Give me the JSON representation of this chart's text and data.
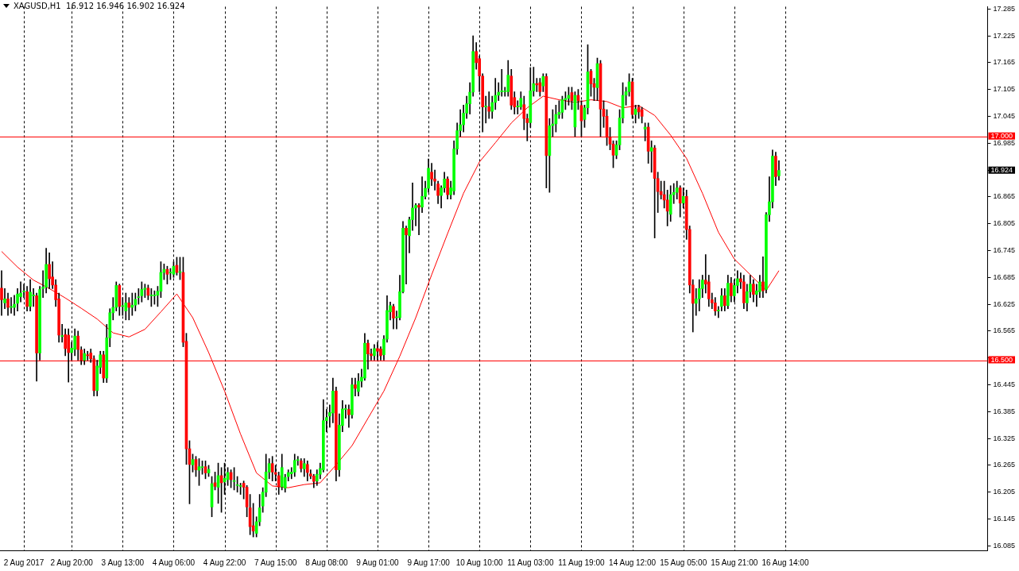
{
  "chart_data": {
    "type": "candlestick",
    "title": "XAGUSD,H1  16.912 16.946 16.902 16.924",
    "categories": [
      null,
      null,
      null,
      null,
      null,
      null,
      null,
      "2 Aug 2017",
      null,
      null,
      null,
      null,
      null,
      null,
      null,
      null,
      null,
      null,
      null,
      null,
      null,
      null,
      "2 Aug 20:00",
      null,
      null,
      null,
      null,
      null,
      null,
      null,
      null,
      null,
      null,
      null,
      null,
      null,
      null,
      null,
      "3 Aug 13:00",
      null,
      null,
      null,
      null,
      null,
      null,
      null,
      null,
      null,
      null,
      null,
      null,
      null,
      null,
      null,
      "4 Aug 06:00",
      null,
      null,
      null,
      null,
      null,
      null,
      null,
      null,
      null,
      null,
      null,
      null,
      null,
      null,
      null,
      "4 Aug 22:00",
      null,
      null,
      null,
      null,
      null,
      null,
      null,
      null,
      null,
      null,
      null,
      null,
      null,
      null,
      null,
      "7 Aug 15:00",
      null,
      null,
      null,
      null,
      null,
      null,
      null,
      null,
      null,
      null,
      null,
      null,
      null,
      null,
      null,
      "8 Aug 08:00",
      null,
      null,
      null,
      null,
      null,
      null,
      null,
      null,
      null,
      null,
      null,
      null,
      null,
      null,
      null,
      "9 Aug 01:00",
      null,
      null,
      null,
      null,
      null,
      null,
      null,
      null,
      null,
      null,
      null,
      null,
      null,
      null,
      null,
      "9 Aug 17:00",
      null,
      null,
      null,
      null,
      null,
      null,
      null,
      null,
      null,
      null,
      null,
      null,
      null,
      null,
      null,
      "10 Aug 10:00",
      null,
      null,
      null,
      null,
      null,
      null,
      null,
      null,
      null,
      null,
      null,
      null,
      null,
      null,
      null,
      "11 Aug 03:00",
      null,
      null,
      null,
      null,
      null,
      null,
      null,
      null,
      null,
      null,
      null,
      null,
      null,
      null,
      null,
      "11 Aug 19:00",
      null,
      null,
      null,
      null,
      null,
      null,
      null,
      null,
      null,
      null,
      null,
      null,
      null,
      null,
      null,
      "14 Aug 12:00",
      null,
      null,
      null,
      null,
      null,
      null,
      null,
      null,
      null,
      null,
      null,
      null,
      null,
      null,
      null,
      "15 Aug 05:00",
      null,
      null,
      null,
      null,
      null,
      null,
      null,
      null,
      null,
      null,
      null,
      null,
      null,
      null,
      null,
      "15 Aug 21:00",
      null,
      null,
      null,
      null,
      null,
      null,
      null,
      null,
      null,
      null,
      null,
      null,
      null,
      null,
      null,
      "16 Aug 14:00",
      null,
      null,
      null,
      null,
      null,
      null,
      null,
      null,
      null,
      null,
      null,
      null,
      null,
      null,
      null,
      null,
      null,
      null,
      null,
      null,
      null,
      null,
      null,
      null,
      null,
      null,
      null,
      null,
      null,
      null,
      null,
      null,
      null,
      null,
      null,
      null,
      null,
      null,
      null,
      null,
      null,
      null,
      null,
      null,
      null,
      null,
      null,
      null,
      null,
      null,
      null,
      null,
      null,
      null,
      null,
      null,
      null,
      null,
      null,
      null,
      null,
      null,
      null
    ],
    "ohlc": [
      [
        16.661,
        16.7,
        16.6,
        16.635
      ],
      [
        16.628,
        16.66,
        16.615,
        16.637
      ],
      [
        16.637,
        16.65,
        16.6,
        16.618
      ],
      [
        16.618,
        16.64,
        16.605,
        16.618
      ],
      [
        16.618,
        16.645,
        16.6,
        16.625
      ],
      [
        16.627,
        16.66,
        16.61,
        16.648
      ],
      [
        16.642,
        16.675,
        16.63,
        16.65
      ],
      [
        16.653,
        16.67,
        16.64,
        16.653
      ],
      [
        16.653,
        16.665,
        16.61,
        16.62
      ],
      [
        16.62,
        16.68,
        16.61,
        16.652
      ],
      [
        16.644,
        16.66,
        16.62,
        16.644
      ],
      [
        16.644,
        16.65,
        16.453,
        16.516
      ],
      [
        16.516,
        16.665,
        16.5,
        16.658
      ],
      [
        16.66,
        16.7,
        16.64,
        16.663
      ],
      [
        16.663,
        16.75,
        16.65,
        16.714
      ],
      [
        16.714,
        16.74,
        16.66,
        16.682
      ],
      [
        16.686,
        16.72,
        16.66,
        16.668
      ],
      [
        16.668,
        16.68,
        16.62,
        16.635
      ],
      [
        16.637,
        16.65,
        16.54,
        16.556
      ],
      [
        16.553,
        16.58,
        16.54,
        16.553
      ],
      [
        16.557,
        16.57,
        16.51,
        16.526
      ],
      [
        16.556,
        16.57,
        16.451,
        16.517
      ],
      [
        16.517,
        16.54,
        16.5,
        16.527
      ],
      [
        16.524,
        16.57,
        16.51,
        16.554
      ],
      [
        16.554,
        16.565,
        16.5,
        16.524
      ],
      [
        16.523,
        16.53,
        16.49,
        16.5
      ],
      [
        16.5,
        16.525,
        16.49,
        16.515
      ],
      [
        16.512,
        16.52,
        16.5,
        16.51
      ],
      [
        16.516,
        16.525,
        16.495,
        16.503
      ],
      [
        16.503,
        16.51,
        16.42,
        16.432
      ],
      [
        16.432,
        16.5,
        16.42,
        16.487
      ],
      [
        16.484,
        16.52,
        16.47,
        16.512
      ],
      [
        16.512,
        16.52,
        16.45,
        16.46
      ],
      [
        16.46,
        16.58,
        16.45,
        16.55
      ],
      [
        16.55,
        16.615,
        16.53,
        16.606
      ],
      [
        16.606,
        16.64,
        16.59,
        16.618
      ],
      [
        16.618,
        16.675,
        16.61,
        16.667
      ],
      [
        16.667,
        16.67,
        16.6,
        16.62
      ],
      [
        16.62,
        16.64,
        16.6,
        16.62
      ],
      [
        16.61,
        16.65,
        16.59,
        16.628
      ],
      [
        16.628,
        16.64,
        16.59,
        16.618
      ],
      [
        16.618,
        16.65,
        16.6,
        16.623
      ],
      [
        16.623,
        16.65,
        16.61,
        16.636
      ],
      [
        16.64,
        16.66,
        16.625,
        16.64
      ],
      [
        16.644,
        16.675,
        16.63,
        16.658
      ],
      [
        16.658,
        16.67,
        16.64,
        16.661
      ],
      [
        16.661,
        16.668,
        16.635,
        16.645
      ],
      [
        16.644,
        16.66,
        16.62,
        16.644
      ],
      [
        16.644,
        16.655,
        16.625,
        16.644
      ],
      [
        16.645,
        16.665,
        16.62,
        16.654
      ],
      [
        16.654,
        16.72,
        16.64,
        16.696
      ],
      [
        16.696,
        16.715,
        16.68,
        16.703
      ],
      [
        16.703,
        16.71,
        16.67,
        16.692
      ],
      [
        16.695,
        16.705,
        16.68,
        16.695
      ],
      [
        16.692,
        16.72,
        16.685,
        16.71
      ],
      [
        16.712,
        16.73,
        16.69,
        16.696
      ],
      [
        16.696,
        16.73,
        16.68,
        16.698
      ],
      [
        16.696,
        16.73,
        16.53,
        16.54
      ],
      [
        16.542,
        16.56,
        16.267,
        16.302
      ],
      [
        16.302,
        16.32,
        16.179,
        16.267
      ],
      [
        16.266,
        16.29,
        16.25,
        16.278
      ],
      [
        16.278,
        16.285,
        16.24,
        16.255
      ],
      [
        16.254,
        16.28,
        16.22,
        16.262
      ],
      [
        16.26,
        16.275,
        16.245,
        16.26
      ],
      [
        16.262,
        16.275,
        16.235,
        16.248
      ],
      [
        16.248,
        16.265,
        16.24,
        16.256
      ],
      [
        16.172,
        16.24,
        16.15,
        16.224
      ],
      [
        16.226,
        16.25,
        16.21,
        16.218
      ],
      [
        16.216,
        16.27,
        16.18,
        16.242
      ],
      [
        16.242,
        16.26,
        16.16,
        16.226
      ],
      [
        16.228,
        16.27,
        16.2,
        16.236
      ],
      [
        16.233,
        16.26,
        16.22,
        16.249
      ],
      [
        16.249,
        16.255,
        16.215,
        16.233
      ],
      [
        16.229,
        16.26,
        16.21,
        16.229
      ],
      [
        16.22,
        16.24,
        16.205,
        16.22
      ],
      [
        16.218,
        16.225,
        16.2,
        16.218
      ],
      [
        16.225,
        16.23,
        16.19,
        16.216
      ],
      [
        16.216,
        16.22,
        16.15,
        16.172
      ],
      [
        16.17,
        16.2,
        16.11,
        16.128
      ],
      [
        16.13,
        16.18,
        16.105,
        16.118
      ],
      [
        16.113,
        16.15,
        16.105,
        16.139
      ],
      [
        16.139,
        16.2,
        16.13,
        16.17
      ],
      [
        16.174,
        16.215,
        16.16,
        16.205
      ],
      [
        16.205,
        16.29,
        16.195,
        16.25
      ],
      [
        16.25,
        16.28,
        16.235,
        16.269
      ],
      [
        16.269,
        16.285,
        16.23,
        16.25
      ],
      [
        16.249,
        16.265,
        16.23,
        16.245
      ],
      [
        16.242,
        16.25,
        16.2,
        16.217
      ],
      [
        16.217,
        16.29,
        16.21,
        16.26
      ],
      [
        16.214,
        16.245,
        16.205,
        16.238
      ],
      [
        16.24,
        16.255,
        16.23,
        16.249
      ],
      [
        16.246,
        16.26,
        16.235,
        16.25
      ],
      [
        16.25,
        16.29,
        16.24,
        16.276
      ],
      [
        16.276,
        16.285,
        16.265,
        16.276
      ],
      [
        16.275,
        16.28,
        16.25,
        16.258
      ],
      [
        16.257,
        16.28,
        16.24,
        16.269
      ],
      [
        16.267,
        16.275,
        16.23,
        16.249
      ],
      [
        16.246,
        16.255,
        16.235,
        16.241
      ],
      [
        16.241,
        16.245,
        16.215,
        16.229
      ],
      [
        16.23,
        16.255,
        16.22,
        16.245
      ],
      [
        16.245,
        16.27,
        16.235,
        16.258
      ],
      [
        16.255,
        16.412,
        16.25,
        16.365
      ],
      [
        16.365,
        16.39,
        16.34,
        16.372
      ],
      [
        16.375,
        16.4,
        16.35,
        16.383
      ],
      [
        16.382,
        16.46,
        16.36,
        16.431
      ],
      [
        16.431,
        16.44,
        16.23,
        16.255
      ],
      [
        16.255,
        16.38,
        16.24,
        16.355
      ],
      [
        16.354,
        16.41,
        16.34,
        16.391
      ],
      [
        16.39,
        16.4,
        16.37,
        16.39
      ],
      [
        16.39,
        16.4,
        16.35,
        16.378
      ],
      [
        16.378,
        16.46,
        16.37,
        16.445
      ],
      [
        16.445,
        16.46,
        16.42,
        16.437
      ],
      [
        16.43,
        16.47,
        16.42,
        16.453
      ],
      [
        16.453,
        16.48,
        16.44,
        16.462
      ],
      [
        16.46,
        16.56,
        16.455,
        16.538
      ],
      [
        16.538,
        16.545,
        16.48,
        16.514
      ],
      [
        16.514,
        16.525,
        16.5,
        16.51
      ],
      [
        16.51,
        16.535,
        16.5,
        16.526
      ],
      [
        16.526,
        16.54,
        16.5,
        16.52
      ],
      [
        16.525,
        16.53,
        16.5,
        16.51
      ],
      [
        16.512,
        16.555,
        16.5,
        16.547
      ],
      [
        16.547,
        16.644,
        16.54,
        16.611
      ],
      [
        16.608,
        16.63,
        16.59,
        16.622
      ],
      [
        16.62,
        16.625,
        16.57,
        16.594
      ],
      [
        16.595,
        16.61,
        16.57,
        16.595
      ],
      [
        16.595,
        16.69,
        16.59,
        16.653
      ],
      [
        16.653,
        16.81,
        16.65,
        16.795
      ],
      [
        16.795,
        16.8,
        16.67,
        16.78
      ],
      [
        16.778,
        16.82,
        16.74,
        16.814
      ],
      [
        16.814,
        16.896,
        16.79,
        16.84
      ],
      [
        16.84,
        16.85,
        16.8,
        16.846
      ],
      [
        16.846,
        16.85,
        16.78,
        16.842
      ],
      [
        16.842,
        16.91,
        16.83,
        16.866
      ],
      [
        16.866,
        16.9,
        16.86,
        16.884
      ],
      [
        16.884,
        16.95,
        16.875,
        16.929
      ],
      [
        16.92,
        16.94,
        16.89,
        16.905
      ],
      [
        16.905,
        16.925,
        16.88,
        16.9
      ],
      [
        16.894,
        16.9,
        16.85,
        16.868
      ],
      [
        16.868,
        16.89,
        16.84,
        16.885
      ],
      [
        16.885,
        16.92,
        16.875,
        16.905
      ],
      [
        16.905,
        16.91,
        16.86,
        16.87
      ],
      [
        16.87,
        16.9,
        16.86,
        16.885
      ],
      [
        16.878,
        16.99,
        16.87,
        16.972
      ],
      [
        16.972,
        17.03,
        16.96,
        17.013
      ],
      [
        17.013,
        17.06,
        17.0,
        17.026
      ],
      [
        17.026,
        17.07,
        17.01,
        17.052
      ],
      [
        17.052,
        17.09,
        17.04,
        17.073
      ],
      [
        17.073,
        17.12,
        17.05,
        17.099
      ],
      [
        17.099,
        17.225,
        17.09,
        17.19
      ],
      [
        17.19,
        17.21,
        17.15,
        17.165
      ],
      [
        17.174,
        17.18,
        17.1,
        17.135
      ],
      [
        17.135,
        17.14,
        17.01,
        17.066
      ],
      [
        17.066,
        17.09,
        17.03,
        17.066
      ],
      [
        17.066,
        17.1,
        17.04,
        17.056
      ],
      [
        17.056,
        17.09,
        17.04,
        17.076
      ],
      [
        17.076,
        17.13,
        17.06,
        17.092
      ],
      [
        17.092,
        17.12,
        17.08,
        17.099
      ],
      [
        17.1,
        17.15,
        17.09,
        17.102
      ],
      [
        17.1,
        17.11,
        17.09,
        17.1
      ],
      [
        17.1,
        17.17,
        17.09,
        17.137
      ],
      [
        17.135,
        17.15,
        17.06,
        17.07
      ],
      [
        17.087,
        17.1,
        17.05,
        17.066
      ],
      [
        17.066,
        17.08,
        17.05,
        17.066
      ],
      [
        17.066,
        17.1,
        17.06,
        17.085
      ],
      [
        17.071,
        17.09,
        17.015,
        17.04
      ],
      [
        17.04,
        17.05,
        16.99,
        17.031
      ],
      [
        17.031,
        17.154,
        17.02,
        17.102
      ],
      [
        17.102,
        17.155,
        17.09,
        17.118
      ],
      [
        17.118,
        17.13,
        17.1,
        17.115
      ],
      [
        17.12,
        17.13,
        17.09,
        17.1
      ],
      [
        17.113,
        17.14,
        17.1,
        17.134
      ],
      [
        17.134,
        17.14,
        16.885,
        16.957
      ],
      [
        16.957,
        17.04,
        16.875,
        17.024
      ],
      [
        17.024,
        17.06,
        17.0,
        17.028
      ],
      [
        17.028,
        17.07,
        17.01,
        17.049
      ],
      [
        17.049,
        17.08,
        17.04,
        17.054
      ],
      [
        17.054,
        17.09,
        17.04,
        17.082
      ],
      [
        17.082,
        17.1,
        17.06,
        17.085
      ],
      [
        17.085,
        17.11,
        17.07,
        17.092
      ],
      [
        17.098,
        17.11,
        17.06,
        17.08
      ],
      [
        17.021,
        17.1,
        17.0,
        17.092
      ],
      [
        17.092,
        17.105,
        17.06,
        17.08
      ],
      [
        17.069,
        17.08,
        17.0,
        17.035
      ],
      [
        17.038,
        17.07,
        17.02,
        17.064
      ],
      [
        17.064,
        17.205,
        17.05,
        17.144
      ],
      [
        17.146,
        17.15,
        17.09,
        17.118
      ],
      [
        17.118,
        17.13,
        17.08,
        17.11
      ],
      [
        17.109,
        17.175,
        17.08,
        17.163
      ],
      [
        17.163,
        17.17,
        17.0,
        17.061
      ],
      [
        17.061,
        17.08,
        17.02,
        17.045
      ],
      [
        17.045,
        17.06,
        16.98,
        16.998
      ],
      [
        16.998,
        17.02,
        16.97,
        16.983
      ],
      [
        16.983,
        16.99,
        16.93,
        16.958
      ],
      [
        16.958,
        16.99,
        16.95,
        16.981
      ],
      [
        16.981,
        17.06,
        16.97,
        17.041
      ],
      [
        17.041,
        17.12,
        17.03,
        17.092
      ],
      [
        17.092,
        17.11,
        17.07,
        17.1
      ],
      [
        17.1,
        17.14,
        17.09,
        17.122
      ],
      [
        17.122,
        17.13,
        17.04,
        17.049
      ],
      [
        17.049,
        17.07,
        17.03,
        17.061
      ],
      [
        17.065,
        17.07,
        17.04,
        17.055
      ],
      [
        17.06,
        17.065,
        17.03,
        17.045
      ],
      [
        17.016,
        17.03,
        16.99,
        17.021
      ],
      [
        17.021,
        17.03,
        16.94,
        16.967
      ],
      [
        16.967,
        16.99,
        16.92,
        16.975
      ],
      [
        16.974,
        16.98,
        16.773,
        16.906
      ],
      [
        16.906,
        16.92,
        16.83,
        16.877
      ],
      [
        16.877,
        16.9,
        16.86,
        16.87
      ],
      [
        16.87,
        16.9,
        16.84,
        16.858
      ],
      [
        16.858,
        16.88,
        16.8,
        16.833
      ],
      [
        16.826,
        16.89,
        16.81,
        16.87
      ],
      [
        16.87,
        16.895,
        16.85,
        16.875
      ],
      [
        16.875,
        16.9,
        16.86,
        16.885
      ],
      [
        16.885,
        16.89,
        16.82,
        16.851
      ],
      [
        16.851,
        16.885,
        16.84,
        16.866
      ],
      [
        16.866,
        16.88,
        16.77,
        16.792
      ],
      [
        16.792,
        16.8,
        16.65,
        16.668
      ],
      [
        16.668,
        16.68,
        16.563,
        16.627
      ],
      [
        16.627,
        16.66,
        16.6,
        16.637
      ],
      [
        16.637,
        16.68,
        16.61,
        16.66
      ],
      [
        16.66,
        16.69,
        16.64,
        16.679
      ],
      [
        16.679,
        16.736,
        16.65,
        16.67
      ],
      [
        16.675,
        16.69,
        16.62,
        16.637
      ],
      [
        16.635,
        16.65,
        16.615,
        16.628
      ],
      [
        16.628,
        16.64,
        16.6,
        16.61
      ],
      [
        16.61,
        16.62,
        16.595,
        16.61
      ],
      [
        16.62,
        16.66,
        16.61,
        16.644
      ],
      [
        16.644,
        16.66,
        16.61,
        16.622
      ],
      [
        16.622,
        16.69,
        16.615,
        16.672
      ],
      [
        16.672,
        16.685,
        16.63,
        16.644
      ],
      [
        16.644,
        16.68,
        16.63,
        16.667
      ],
      [
        16.667,
        16.7,
        16.65,
        16.682
      ],
      [
        16.682,
        16.695,
        16.66,
        16.675
      ],
      [
        16.675,
        16.69,
        16.615,
        16.628
      ],
      [
        16.628,
        16.67,
        16.61,
        16.653
      ],
      [
        16.653,
        16.69,
        16.64,
        16.67
      ],
      [
        16.67,
        16.68,
        16.63,
        16.647
      ],
      [
        16.647,
        16.67,
        16.62,
        16.655
      ],
      [
        16.653,
        16.69,
        16.64,
        16.675
      ],
      [
        16.675,
        16.731,
        16.64,
        16.655
      ],
      [
        16.658,
        16.83,
        16.65,
        16.825
      ],
      [
        16.825,
        16.91,
        16.81,
        16.854
      ],
      [
        16.854,
        16.97,
        16.84,
        16.956
      ],
      [
        16.956,
        16.965,
        16.89,
        16.91
      ],
      [
        16.912,
        16.946,
        16.902,
        16.924
      ],
      null,
      null,
      null,
      null,
      null,
      null,
      null,
      null,
      null,
      null,
      null,
      null,
      null,
      null,
      null,
      null,
      null,
      null,
      null,
      null,
      null,
      null,
      null,
      null,
      null,
      null,
      null,
      null,
      null,
      null,
      null,
      null,
      null,
      null,
      null,
      null,
      null,
      null,
      null,
      null,
      null,
      null,
      null,
      null,
      null,
      null,
      null,
      null,
      null,
      null,
      null,
      null,
      null,
      null,
      null,
      null,
      null,
      null,
      null,
      null,
      null,
      null,
      null,
      null,
      null
    ],
    "series": [
      {
        "type": "line",
        "color": "#ff0000",
        "values": [
          16.743,
          null,
          null,
          null,
          null,
          16.708,
          null,
          null,
          null,
          null,
          16.679,
          null,
          null,
          null,
          null,
          16.66,
          null,
          null,
          null,
          null,
          16.639,
          null,
          null,
          null,
          null,
          16.616,
          null,
          null,
          null,
          null,
          16.592,
          null,
          null,
          null,
          null,
          16.561,
          null,
          null,
          null,
          null,
          16.552,
          null,
          null,
          null,
          null,
          16.569,
          null,
          null,
          null,
          null,
          16.608,
          null,
          null,
          null,
          null,
          16.648,
          null,
          null,
          null,
          null,
          16.595,
          null,
          null,
          null,
          null,
          16.517,
          null,
          null,
          null,
          null,
          16.431,
          null,
          null,
          null,
          null,
          16.335,
          null,
          null,
          null,
          null,
          16.248,
          null,
          null,
          null,
          null,
          16.219,
          null,
          null,
          null,
          null,
          16.215,
          null,
          null,
          null,
          null,
          16.222,
          null,
          null,
          null,
          null,
          16.226,
          null,
          null,
          null,
          null,
          16.266,
          null,
          null,
          null,
          null,
          16.309,
          null,
          null,
          null,
          null,
          16.37,
          null,
          null,
          null,
          null,
          16.431,
          null,
          null,
          null,
          null,
          16.509,
          null,
          null,
          null,
          null,
          16.595,
          null,
          null,
          null,
          null,
          16.691,
          null,
          null,
          null,
          null,
          16.783,
          null,
          null,
          null,
          null,
          16.873,
          null,
          null,
          null,
          null,
          16.943,
          null,
          null,
          null,
          null,
          16.986,
          null,
          null,
          null,
          null,
          17.03,
          null,
          null,
          null,
          null,
          17.064,
          null,
          null,
          null,
          null,
          17.09,
          null,
          null,
          null,
          null,
          17.082,
          null,
          null,
          null,
          null,
          17.076,
          null,
          null,
          null,
          null,
          17.082,
          null,
          null,
          null,
          null,
          17.078,
          null,
          null,
          null,
          null,
          17.064,
          null,
          null,
          null,
          null,
          17.069,
          null,
          null,
          null,
          null,
          17.047,
          null,
          null,
          null,
          null,
          17.003,
          null,
          null,
          null,
          null,
          16.951,
          null,
          null,
          null,
          null,
          16.873,
          null,
          null,
          null,
          null,
          16.786,
          null,
          null,
          null,
          null,
          16.726,
          null,
          null,
          null,
          null,
          16.691,
          null,
          null,
          null,
          null,
          16.656,
          null,
          null,
          null,
          16.7,
          null,
          null,
          null,
          null,
          null,
          null,
          null,
          null,
          null,
          null,
          null,
          null,
          null,
          null,
          null,
          null,
          null,
          null,
          null,
          null,
          null,
          null,
          null,
          null,
          null,
          null,
          null,
          null,
          null,
          null,
          null,
          null,
          null,
          null,
          null,
          null,
          null,
          null,
          null,
          null,
          null,
          null,
          null,
          null,
          null,
          null,
          null,
          null,
          null,
          null,
          null,
          null,
          null,
          null,
          null,
          null,
          null,
          null,
          null,
          null,
          null,
          null,
          null,
          null,
          null
        ]
      }
    ],
    "ylim": [
      16.075,
      17.29
    ],
    "yticks": [
      16.085,
      16.145,
      16.205,
      16.265,
      16.325,
      16.385,
      16.445,
      {
        "value": 16.505,
        "label": null
      },
      16.565,
      16.625,
      16.685,
      16.745,
      16.805,
      16.865,
      {
        "value": 16.925,
        "label": null
      },
      16.985,
      17.045,
      17.105,
      17.165,
      17.225,
      17.285
    ],
    "ref_lines": [
      {
        "axis": "y",
        "value": 17.0,
        "label": "17.000",
        "color": "#ff0000"
      },
      {
        "axis": "y",
        "value": 16.5,
        "label": "16.500",
        "color": "#ff0000"
      }
    ],
    "annotations": [
      "16.924"
    ],
    "grid": "x",
    "legend": false
  }
}
